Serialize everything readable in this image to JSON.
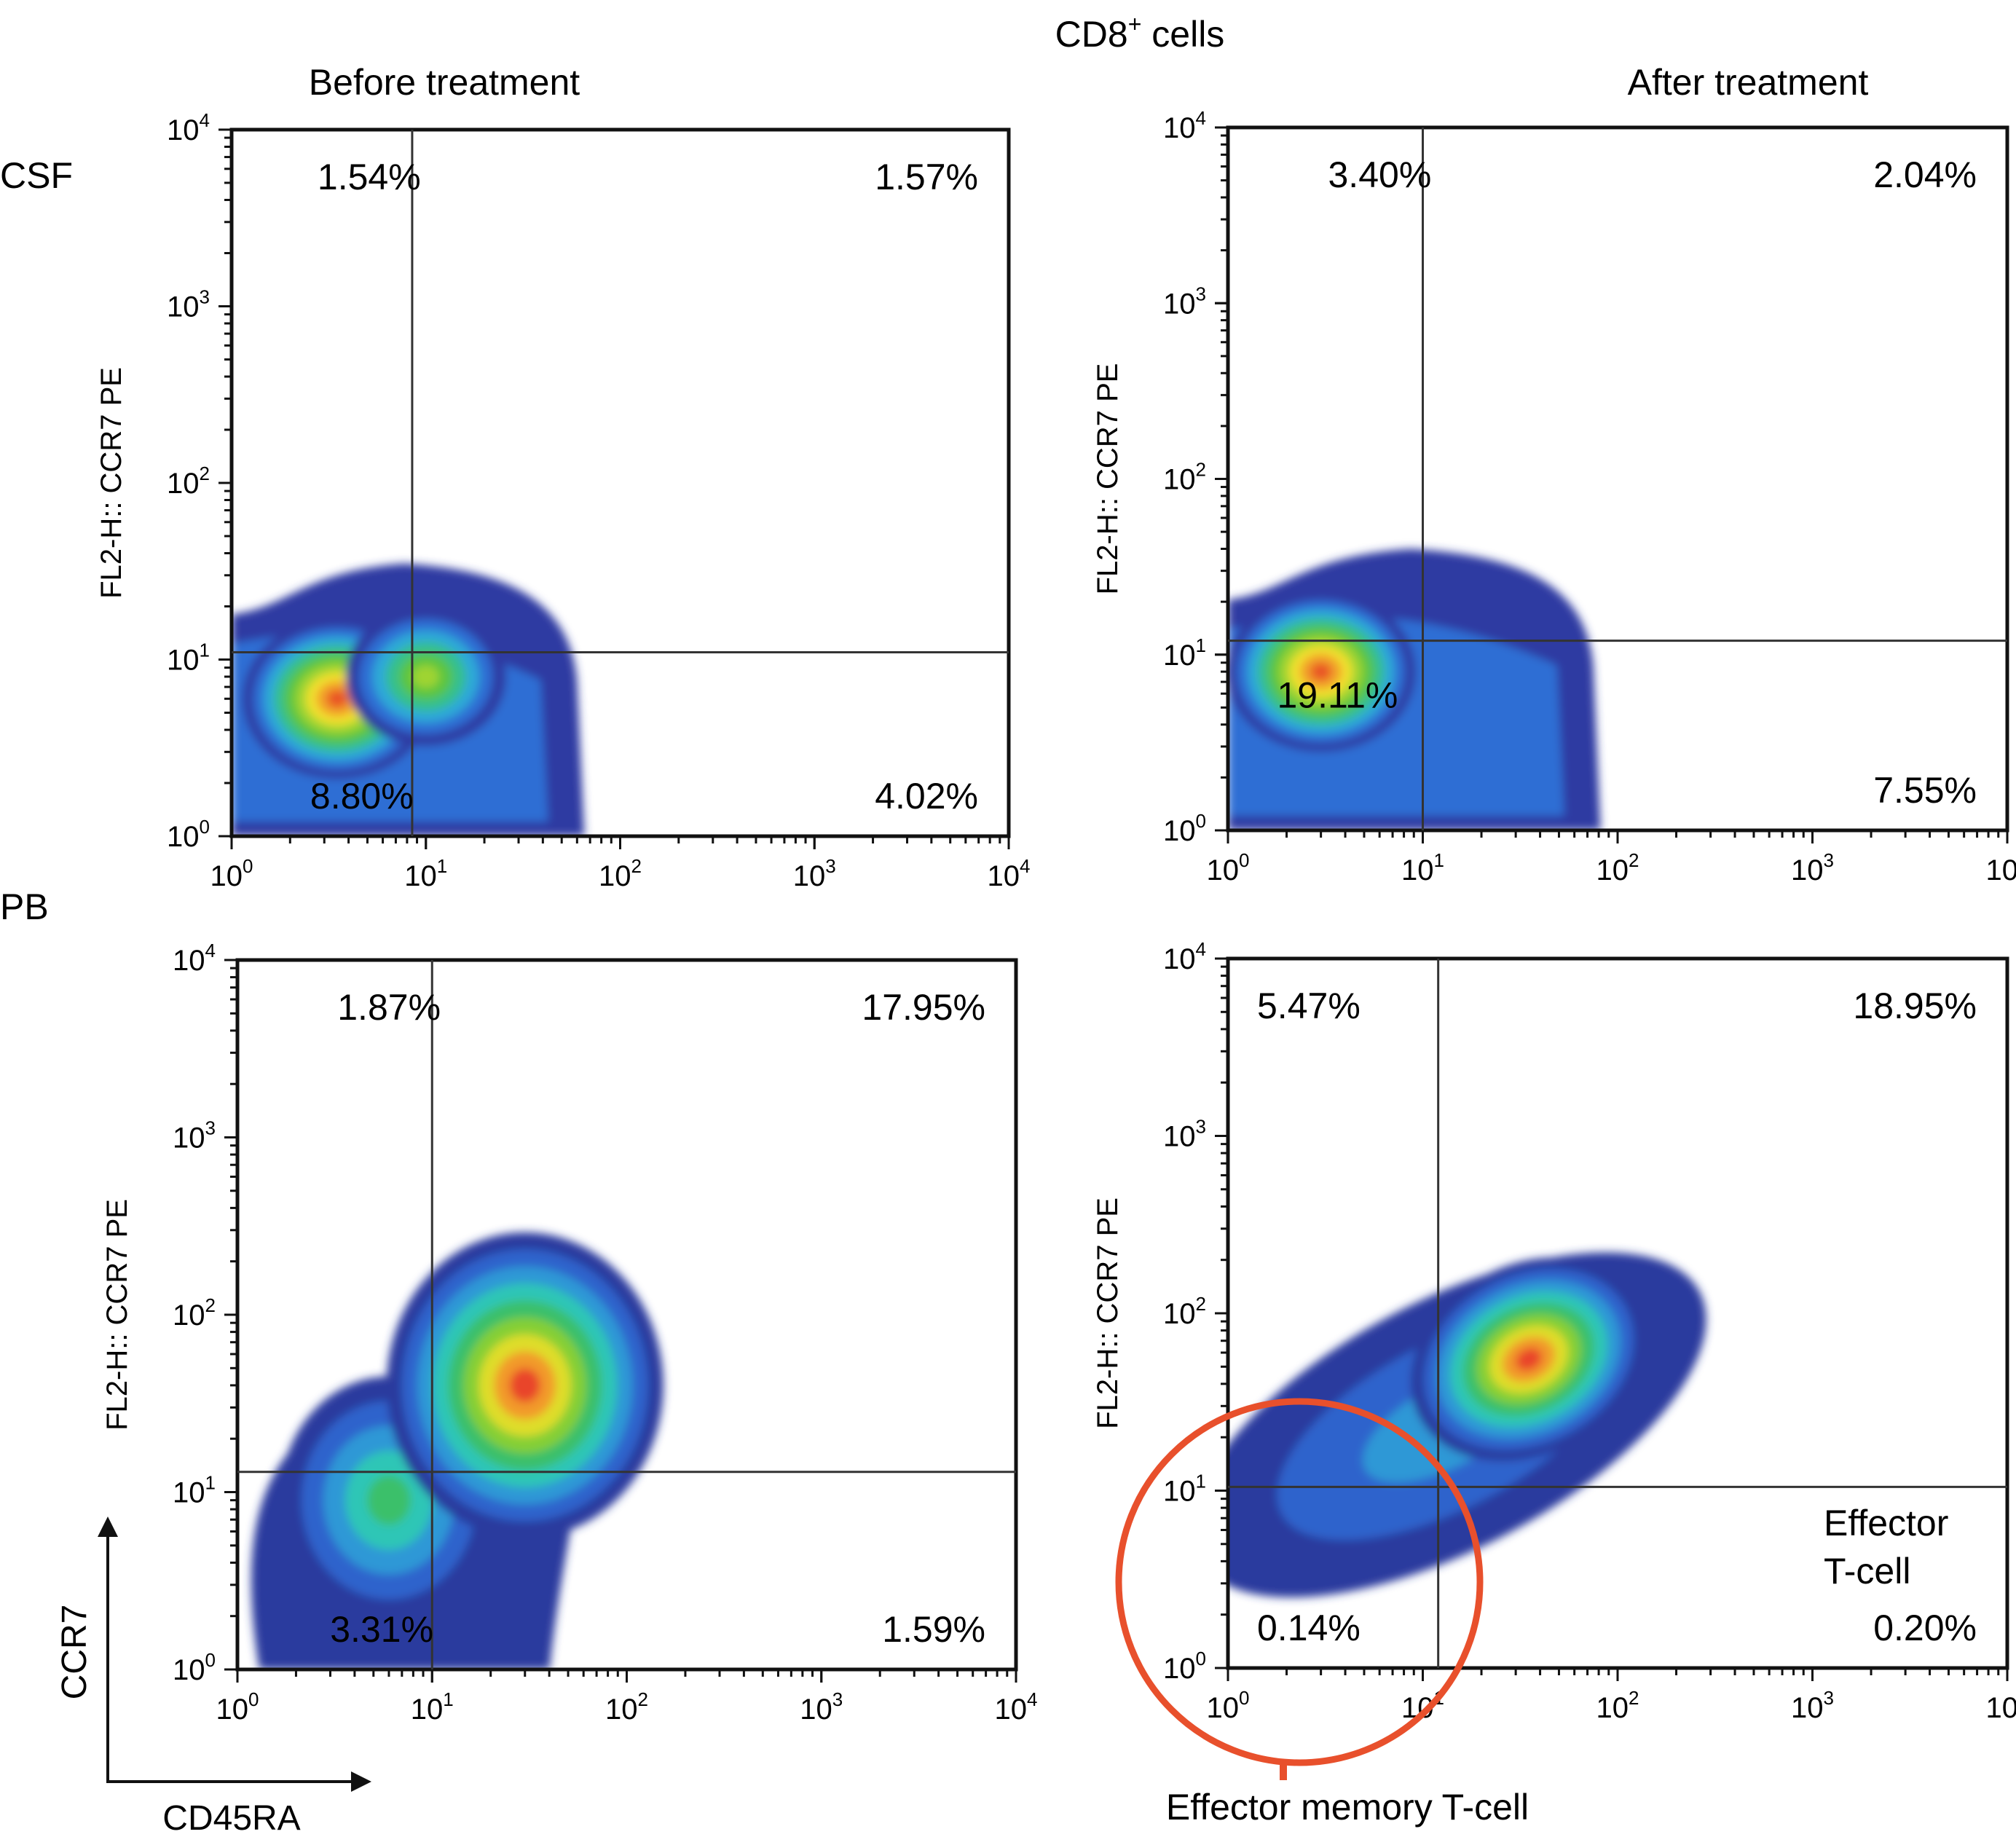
{
  "figure": {
    "title_main": "CD8",
    "title_sup": "+",
    "title_rest": " cells",
    "columns": [
      "Before treatment",
      "After treatment"
    ],
    "rows": [
      "CSF",
      "PB"
    ],
    "axis_x_legend": "CD45RA",
    "axis_y_legend": "CCR7",
    "annotation_circle_label": "Effector memory T-cell",
    "annotation_effector": [
      "Effector",
      "T-cell"
    ],
    "annotation_color": "#e8502c"
  },
  "chart_data": [
    {
      "type": "heatmap",
      "row": "CSF",
      "column": "Before treatment",
      "xscale": "log",
      "yscale": "log",
      "xlim": [
        1,
        10000
      ],
      "ylim": [
        1,
        10000
      ],
      "x_ticks": [
        "10^0",
        "10^1",
        "10^2",
        "10^3",
        "10^4"
      ],
      "y_ticks": [
        "10^0",
        "10^1",
        "10^2",
        "10^3",
        "10^4"
      ],
      "ylabel": "FL2-H:: CCR7 PE",
      "gate": {
        "x": 8.5,
        "y": 11
      },
      "quadrants": {
        "upper_left": "1.54%",
        "upper_right": "1.57%",
        "lower_left": "8.80%",
        "lower_right": "4.02%"
      },
      "density_peaks": [
        {
          "x": 3.5,
          "y": 6,
          "level": "high"
        },
        {
          "x": 10,
          "y": 8,
          "level": "medium"
        }
      ],
      "population_extent": {
        "x": [
          1,
          60
        ],
        "y": [
          1,
          35
        ]
      }
    },
    {
      "type": "heatmap",
      "row": "CSF",
      "column": "After treatment",
      "xscale": "log",
      "yscale": "log",
      "xlim": [
        1,
        10000
      ],
      "ylim": [
        1,
        10000
      ],
      "x_ticks": [
        "10^0",
        "10^1",
        "10^2",
        "10^3",
        "10^4"
      ],
      "y_ticks": [
        "10^0",
        "10^1",
        "10^2",
        "10^3",
        "10^4"
      ],
      "ylabel": "FL2-H:: CCR7 PE",
      "gate": {
        "x": 10,
        "y": 12
      },
      "quadrants": {
        "upper_left": "3.40%",
        "upper_right": "2.04%",
        "lower_left": "19.11%",
        "lower_right": "7.55%"
      },
      "density_peaks": [
        {
          "x": 3,
          "y": 8,
          "level": "high"
        }
      ],
      "population_extent": {
        "x": [
          1,
          75
        ],
        "y": [
          1,
          40
        ]
      }
    },
    {
      "type": "heatmap",
      "row": "PB",
      "column": "Before treatment",
      "xscale": "log",
      "yscale": "log",
      "xlim": [
        1,
        10000
      ],
      "ylim": [
        1,
        10000
      ],
      "x_ticks": [
        "10^0",
        "10^1",
        "10^2",
        "10^3",
        "10^4"
      ],
      "y_ticks": [
        "10^0",
        "10^1",
        "10^2",
        "10^3",
        "10^4"
      ],
      "ylabel": "FL2-H:: CCR7 PE",
      "gate": {
        "x": 10,
        "y": 13
      },
      "quadrants": {
        "upper_left": "1.87%",
        "upper_right": "17.95%",
        "lower_left": "3.31%",
        "lower_right": "1.59%"
      },
      "density_peaks": [
        {
          "x": 30,
          "y": 40,
          "level": "high"
        },
        {
          "x": 6,
          "y": 9,
          "level": "medium"
        }
      ],
      "population_extent": {
        "x": [
          1,
          80
        ],
        "y": [
          1,
          150
        ]
      }
    },
    {
      "type": "heatmap",
      "row": "PB",
      "column": "After treatment",
      "xscale": "log",
      "yscale": "log",
      "xlim": [
        1,
        10000
      ],
      "ylim": [
        1,
        10000
      ],
      "x_ticks": [
        "10^0",
        "10^1",
        "10^2",
        "10^3",
        "10^4"
      ],
      "y_ticks": [
        "10^0",
        "10^1",
        "10^2",
        "10^3",
        "10^4"
      ],
      "ylabel": "FL2-H:: CCR7 PE",
      "gate": {
        "x": 12,
        "y": 10.5
      },
      "quadrants": {
        "upper_left": "5.47%",
        "upper_right": "18.95%",
        "lower_left": "0.14%",
        "lower_right": "0.20%"
      },
      "density_peaks": [
        {
          "x": 35,
          "y": 55,
          "level": "high"
        }
      ],
      "population_extent": {
        "x": [
          4,
          70
        ],
        "y": [
          9,
          130
        ]
      }
    }
  ]
}
